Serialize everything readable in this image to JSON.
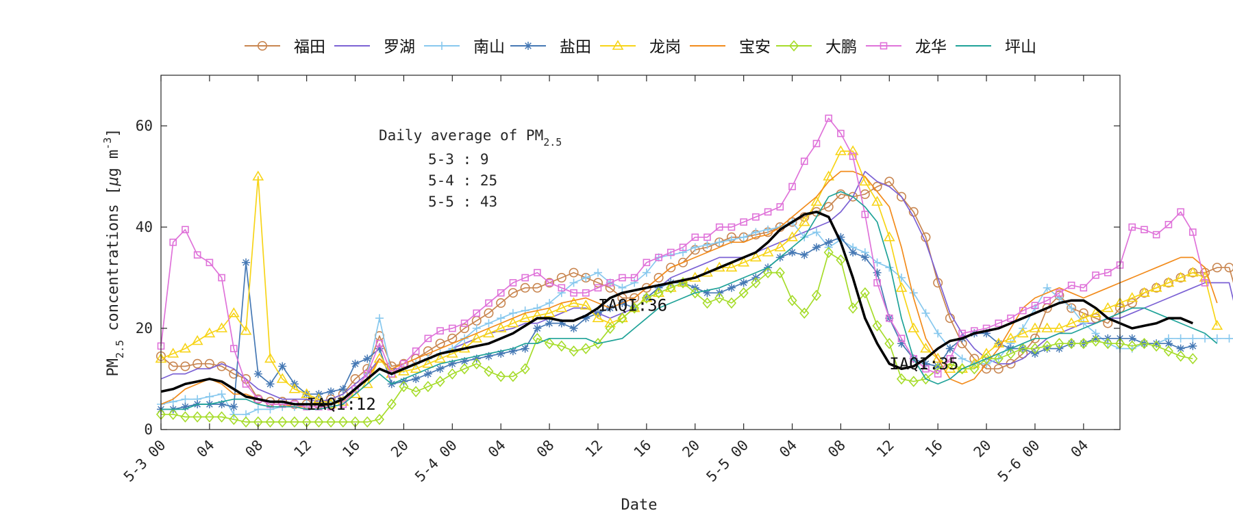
{
  "chart_data": {
    "type": "line",
    "xlabel": "Date",
    "ylabel_main": "PM",
    "ylabel_sub": "2.5",
    "ylabel_rest": " concentrations [",
    "ylabel_mu": "μ",
    "ylabel_unit": "g m",
    "ylabel_exp": "-3",
    "ylabel_close": "]",
    "ylim": [
      0,
      70
    ],
    "xlim": [
      0,
      79
    ],
    "yticks": [
      0,
      20,
      40,
      60
    ],
    "xticks": [
      {
        "x": 0,
        "label": "5-3 00"
      },
      {
        "x": 4,
        "label": "04"
      },
      {
        "x": 8,
        "label": "08"
      },
      {
        "x": 12,
        "label": "12"
      },
      {
        "x": 16,
        "label": "16"
      },
      {
        "x": 20,
        "label": "20"
      },
      {
        "x": 24,
        "label": "5-4 00"
      },
      {
        "x": 28,
        "label": "04"
      },
      {
        "x": 32,
        "label": "08"
      },
      {
        "x": 36,
        "label": "12"
      },
      {
        "x": 40,
        "label": "16"
      },
      {
        "x": 44,
        "label": "20"
      },
      {
        "x": 48,
        "label": "5-5 00"
      },
      {
        "x": 52,
        "label": "04"
      },
      {
        "x": 56,
        "label": "08"
      },
      {
        "x": 60,
        "label": "12"
      },
      {
        "x": 64,
        "label": "16"
      },
      {
        "x": 68,
        "label": "20"
      },
      {
        "x": 72,
        "label": "5-6 00"
      },
      {
        "x": 76,
        "label": "04"
      }
    ],
    "annotation": {
      "title": "Daily average of PM",
      "title_sub": "2.5",
      "lines": [
        "5-3 : 9",
        "5-4 : 25",
        "5-5 : 43"
      ]
    },
    "iaqi_labels": [
      {
        "text": "IAQI:12",
        "x": 12,
        "y": 5
      },
      {
        "text": "IAQI:36",
        "x": 36,
        "y": 24.5
      },
      {
        "text": "IAQI:35",
        "x": 60,
        "y": 13
      }
    ],
    "legend": [
      {
        "name": "福田",
        "color": "#c8854f",
        "marker": "circle"
      },
      {
        "name": "罗湖",
        "color": "#7b61d4",
        "marker": "none"
      },
      {
        "name": "南山",
        "color": "#87c8ee",
        "marker": "plus"
      },
      {
        "name": "盐田",
        "color": "#4578b4",
        "marker": "star"
      },
      {
        "name": "龙岗",
        "color": "#f7d417",
        "marker": "triangle"
      },
      {
        "name": "宝安",
        "color": "#f28b1b",
        "marker": "none"
      },
      {
        "name": "大鹏",
        "color": "#a6dc2a",
        "marker": "diamond"
      },
      {
        "name": "龙华",
        "color": "#df72d9",
        "marker": "square"
      },
      {
        "name": "坪山",
        "color": "#1fa298",
        "marker": "none"
      }
    ],
    "series": [
      {
        "name": "福田",
        "color": "#c8854f",
        "marker": "circle",
        "values": [
          14.5,
          12.5,
          12.5,
          13,
          13,
          12.5,
          11,
          10,
          6,
          5.5,
          5.5,
          5,
          5,
          5,
          6,
          7,
          10,
          12,
          18.5,
          12.5,
          13,
          14,
          15.5,
          17,
          18,
          20,
          21.5,
          23,
          25,
          27,
          28,
          28,
          29,
          30,
          31,
          30,
          29,
          28,
          26,
          26,
          28,
          30,
          32,
          33,
          35.5,
          36,
          37,
          38,
          38,
          38.5,
          39,
          40,
          41,
          42,
          43,
          44,
          46.5,
          46,
          46.5,
          48,
          49,
          46,
          43,
          38,
          29,
          22,
          17,
          14,
          12,
          12,
          13,
          15,
          18,
          24,
          26.5,
          24,
          23,
          22,
          21,
          24,
          25,
          27,
          28,
          29,
          30,
          31,
          31,
          32,
          32,
          23.5
        ]
      },
      {
        "name": "罗湖",
        "color": "#7b61d4",
        "marker": "none",
        "values": [
          10,
          11,
          11,
          12,
          12,
          13,
          12,
          10,
          8,
          7,
          6,
          6,
          6,
          5.5,
          6,
          7,
          9,
          11,
          14,
          12,
          12,
          13,
          14,
          15,
          16,
          17,
          18,
          19,
          19.5,
          20,
          21,
          21,
          22,
          23,
          24,
          24,
          23,
          22,
          23,
          24,
          26,
          28,
          30,
          31,
          32,
          33,
          34,
          34,
          34,
          35,
          36,
          37,
          38,
          39,
          40,
          41,
          43,
          46,
          51,
          49,
          48,
          46,
          42,
          37,
          30,
          23,
          19,
          16,
          14,
          13,
          13,
          14,
          16,
          18,
          19,
          20,
          21,
          21,
          22,
          22,
          23,
          24,
          25,
          26,
          27,
          28,
          29,
          29,
          29,
          19
        ]
      },
      {
        "name": "南山",
        "color": "#87c8ee",
        "marker": "plus",
        "values": [
          5,
          5.5,
          6,
          6,
          6.5,
          7,
          3,
          3,
          4,
          4,
          4.5,
          4.5,
          5,
          5,
          5.5,
          6,
          8,
          11,
          22,
          11,
          12,
          13,
          14,
          15,
          16,
          18,
          20,
          21,
          22,
          23,
          23.5,
          24,
          25,
          27,
          29,
          30,
          31,
          29,
          28,
          29,
          31,
          34,
          34.5,
          35,
          36,
          36.5,
          37,
          37.5,
          38,
          39,
          39.5,
          40,
          41,
          38,
          39,
          36,
          37.5,
          36,
          35,
          33,
          32,
          30,
          27,
          23,
          19,
          16,
          14,
          13,
          13,
          14,
          17,
          20,
          24,
          28,
          26,
          24,
          21,
          19,
          17,
          16,
          16,
          17,
          17,
          18,
          18,
          18,
          18,
          18,
          18,
          18
        ]
      },
      {
        "name": "盐田",
        "color": "#4578b4",
        "marker": "star",
        "values": [
          4,
          4,
          4.5,
          5,
          5,
          5,
          4.5,
          33,
          11,
          9,
          12.5,
          9,
          7,
          7,
          7.5,
          8,
          13,
          14,
          16,
          9,
          9.5,
          10,
          11,
          12,
          13,
          13.5,
          14,
          14.5,
          15,
          15.5,
          16,
          20,
          21,
          21,
          20,
          22,
          23,
          24,
          25,
          24,
          26,
          28,
          29,
          29,
          28,
          27,
          27,
          28,
          29,
          30,
          32,
          34,
          35,
          34.5,
          36,
          37,
          38,
          35,
          34,
          31,
          22,
          17,
          14,
          13,
          12.5,
          16,
          18,
          19,
          19,
          17,
          16,
          16,
          15,
          16,
          16,
          17,
          17,
          18,
          18,
          18,
          18,
          17,
          17,
          17,
          16,
          16.5
        ]
      },
      {
        "name": "龙岗",
        "color": "#f7d417",
        "marker": "triangle",
        "values": [
          14,
          15,
          16,
          17.5,
          19,
          20,
          23,
          19.5,
          50,
          14,
          10,
          8,
          7,
          6,
          5,
          5.5,
          7,
          9,
          14,
          11,
          11.5,
          12,
          13,
          14,
          15,
          16,
          18,
          19,
          20,
          21,
          22,
          22.5,
          23,
          24,
          25,
          24.5,
          22,
          21,
          22,
          24,
          26,
          27,
          28,
          29,
          30,
          31,
          32,
          32,
          33,
          34,
          35,
          36,
          38,
          41,
          45,
          50,
          55,
          55,
          49,
          45,
          38,
          28,
          20,
          16,
          14,
          12,
          12,
          13,
          15,
          17,
          18,
          19,
          20,
          20,
          20,
          21,
          22,
          23,
          24,
          25,
          26,
          27,
          28,
          29,
          30,
          31,
          30,
          20.5
        ]
      },
      {
        "name": "宝安",
        "color": "#f28b1b",
        "marker": "none",
        "values": [
          5,
          6,
          8,
          9,
          10,
          9,
          7,
          7,
          6,
          5,
          5,
          4.5,
          4.5,
          4.5,
          5,
          6,
          8,
          10,
          14,
          12,
          13,
          14,
          15,
          16,
          17,
          18,
          19,
          20,
          21,
          22,
          23,
          23.5,
          24,
          25,
          25.5,
          26,
          25,
          24,
          25,
          26,
          28,
          30,
          32,
          33,
          34,
          35,
          36,
          37,
          37,
          38,
          38.5,
          40,
          42,
          44,
          46,
          49,
          51,
          51,
          50,
          47,
          44,
          36,
          26,
          18,
          14,
          10,
          9,
          10,
          13,
          16,
          20,
          24,
          26,
          27,
          28,
          27,
          26,
          27,
          28,
          29,
          30,
          31,
          32,
          33,
          34,
          34,
          32,
          25
        ]
      },
      {
        "name": "大鹏",
        "color": "#a6dc2a",
        "marker": "diamond",
        "values": [
          3,
          3,
          2.5,
          2.5,
          2.5,
          2.5,
          2,
          1.5,
          1.5,
          1.5,
          1.5,
          1.5,
          1.5,
          1.5,
          1.5,
          1.5,
          1.5,
          1.5,
          2,
          5,
          8.5,
          7.5,
          8.5,
          9.5,
          11,
          12,
          13,
          11.5,
          10.5,
          10.5,
          12,
          18,
          17,
          16.5,
          15.5,
          16,
          17,
          20,
          22,
          24,
          26,
          27,
          28,
          29,
          27,
          25,
          26,
          25,
          27,
          29,
          31,
          31,
          25.5,
          23,
          26.5,
          35,
          33.5,
          24,
          27,
          20.5,
          17,
          10,
          9.5,
          10,
          12,
          13,
          12,
          12,
          14,
          14,
          15,
          16,
          16,
          16.5,
          17,
          17,
          17,
          17.5,
          17,
          17,
          16.5,
          17,
          16.5,
          15.5,
          14.5,
          14
        ]
      },
      {
        "name": "龙华",
        "color": "#df72d9",
        "marker": "square",
        "values": [
          16.5,
          37,
          39.5,
          34.5,
          33,
          30,
          16,
          9,
          6,
          5,
          5,
          5,
          4.5,
          4.5,
          4.5,
          5,
          8,
          11,
          17,
          11,
          13,
          15.5,
          18,
          19.5,
          20,
          21,
          23,
          25,
          27,
          29,
          30,
          31,
          29,
          28,
          27,
          27,
          28,
          29,
          30,
          30,
          33,
          34,
          35,
          36,
          38,
          38,
          40,
          40,
          41,
          42,
          43,
          44,
          48,
          53,
          56.5,
          61.5,
          58.5,
          54,
          42.5,
          29,
          22,
          18,
          14,
          12,
          11,
          14,
          19,
          19.5,
          20,
          21,
          22,
          23.5,
          24.5,
          25.5,
          27,
          28.5,
          28,
          30.5,
          31,
          32.5,
          40,
          39.5,
          38.5,
          40.5,
          43,
          39,
          29
        ]
      },
      {
        "name": "坪山",
        "color": "#1fa298",
        "marker": "none",
        "values": [
          4,
          4,
          4,
          5,
          5,
          5.5,
          6,
          6,
          5,
          4.5,
          4.5,
          4.5,
          4,
          4,
          4.5,
          5,
          7,
          9,
          11,
          9,
          10,
          11,
          12,
          13,
          13.5,
          14,
          14.5,
          15,
          15.5,
          16,
          17,
          17,
          18,
          18,
          18,
          18,
          17,
          17.5,
          18,
          20,
          22,
          24,
          25,
          26,
          27,
          27.5,
          28,
          29,
          30,
          31,
          32,
          34,
          36,
          38,
          42,
          46,
          47,
          46,
          44,
          41,
          33,
          22,
          14,
          10,
          9,
          10,
          12,
          13,
          14,
          15,
          16,
          17,
          18,
          18,
          19,
          19,
          20,
          21,
          22,
          23,
          24,
          24,
          23,
          22,
          21,
          20,
          19,
          17
        ]
      },
      {
        "name": "",
        "color": "#000000",
        "marker": "none",
        "bold": true,
        "values": [
          7.5,
          8,
          9,
          9.5,
          10,
          9.5,
          8,
          6.5,
          6,
          5.5,
          5.5,
          5,
          5,
          5,
          5,
          6,
          8,
          10,
          12,
          11,
          12,
          13,
          14,
          15,
          15.5,
          16,
          16.5,
          17,
          18,
          19,
          20.5,
          22,
          22,
          21.5,
          21.5,
          22.5,
          24,
          26,
          27,
          27.5,
          28,
          28.5,
          29,
          29.5,
          30,
          31,
          32,
          33,
          34,
          35,
          37,
          39.5,
          41,
          42.5,
          43,
          42,
          37,
          30,
          22,
          17,
          13,
          12,
          12.5,
          14,
          16,
          17.5,
          18,
          19,
          19.5,
          20,
          21,
          22,
          23,
          24,
          25,
          25.5,
          25.5,
          24,
          22,
          21,
          20,
          20.5,
          21,
          22,
          22,
          21
        ]
      }
    ]
  }
}
